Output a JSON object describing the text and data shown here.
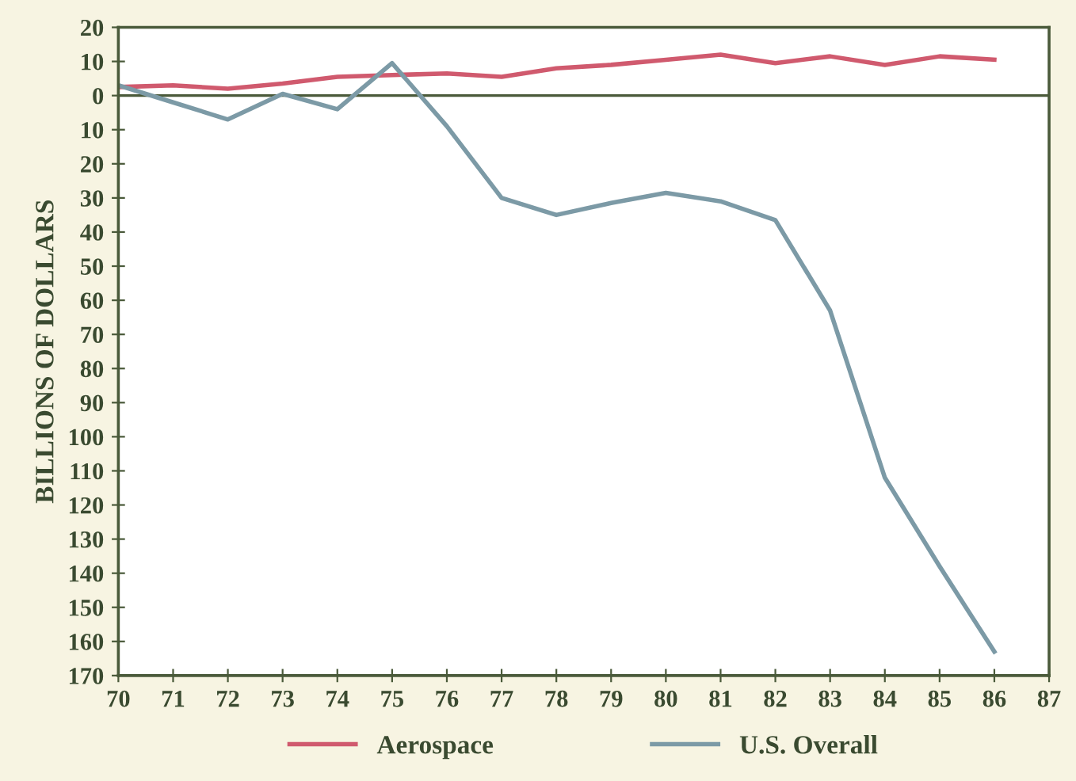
{
  "chart_data": {
    "type": "line",
    "ylabel": "BILLIONS OF DOLLARS",
    "x": [
      70,
      71,
      72,
      73,
      74,
      75,
      76,
      77,
      78,
      79,
      80,
      81,
      82,
      83,
      84,
      85,
      86
    ],
    "series": [
      {
        "name": "Aerospace",
        "color": "#d05a6e",
        "values": [
          2.5,
          3,
          2,
          3.5,
          5.5,
          6,
          6.5,
          5.5,
          8,
          9,
          10.5,
          12,
          9.5,
          11.5,
          9,
          11.5,
          10.5
        ]
      },
      {
        "name": "U.S. Overall",
        "color": "#7c9aa6",
        "values": [
          3,
          -2,
          -7,
          0.5,
          -4,
          9.5,
          -9,
          -30,
          -35,
          -31.5,
          -28.5,
          -31,
          -36.5,
          -63,
          -112,
          -138,
          -163
        ]
      }
    ],
    "xlim": [
      70,
      87
    ],
    "xticks": [
      70,
      71,
      72,
      73,
      74,
      75,
      76,
      77,
      78,
      79,
      80,
      81,
      82,
      83,
      84,
      85,
      86,
      87
    ],
    "ylim": [
      -170,
      20
    ],
    "yticks": [
      20,
      10,
      0,
      {
        "value": -10,
        "label": "10"
      },
      {
        "value": -20,
        "label": "20"
      },
      {
        "value": -30,
        "label": "30"
      },
      {
        "value": -40,
        "label": "40"
      },
      {
        "value": -50,
        "label": "50"
      },
      {
        "value": -60,
        "label": "60"
      },
      {
        "value": -70,
        "label": "70"
      },
      {
        "value": -80,
        "label": "80"
      },
      {
        "value": -90,
        "label": "90"
      },
      {
        "value": -100,
        "label": "100"
      },
      {
        "value": -110,
        "label": "110"
      },
      {
        "value": -120,
        "label": "120"
      },
      {
        "value": -130,
        "label": "130"
      },
      {
        "value": -140,
        "label": "140"
      },
      {
        "value": -150,
        "label": "150"
      },
      {
        "value": -160,
        "label": "160"
      },
      {
        "value": -170,
        "label": "170"
      }
    ],
    "ref_lines": [
      {
        "axis": "y",
        "value": 0,
        "color": "#4a5a3a"
      }
    ],
    "grid": false,
    "legend": "bottom",
    "marker": "none",
    "line_style": "solid"
  }
}
